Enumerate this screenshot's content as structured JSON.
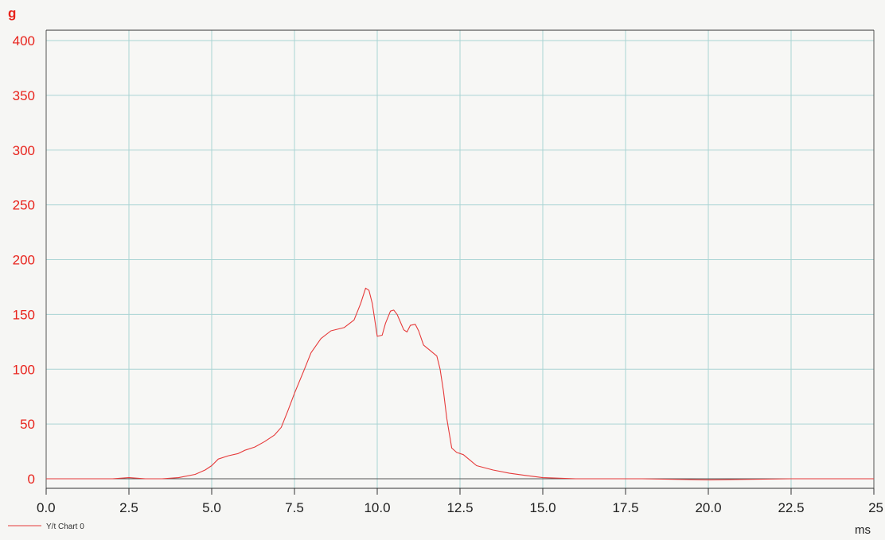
{
  "chart_data": {
    "type": "line",
    "y_unit": "g",
    "x_unit": "ms",
    "xlim": [
      0,
      25
    ],
    "ylim": [
      -8,
      410
    ],
    "x_ticks": [
      "0.0",
      "2.5",
      "5.0",
      "7.5",
      "10.0",
      "12.5",
      "15.0",
      "17.5",
      "20.0",
      "22.5",
      "25"
    ],
    "y_ticks": [
      "0",
      "50",
      "100",
      "150",
      "200",
      "250",
      "300",
      "350",
      "400"
    ],
    "grid": true,
    "legend_position": "bottom-left",
    "colors": {
      "line": "#e63a3a",
      "grid": "#a9d4d4",
      "y_tick_text": "#e8231c",
      "axis": "#333333"
    },
    "series": [
      {
        "name": "Y/t Chart 0",
        "x": [
          0,
          1.0,
          2.0,
          2.5,
          3.0,
          3.5,
          4.0,
          4.5,
          4.8,
          5.0,
          5.2,
          5.5,
          5.8,
          6.0,
          6.3,
          6.6,
          6.9,
          7.1,
          7.3,
          7.5,
          7.8,
          8.0,
          8.3,
          8.6,
          9.0,
          9.3,
          9.5,
          9.65,
          9.75,
          9.85,
          10.0,
          10.15,
          10.25,
          10.4,
          10.5,
          10.6,
          10.8,
          10.9,
          11.0,
          11.15,
          11.25,
          11.4,
          11.6,
          11.8,
          11.9,
          12.0,
          12.1,
          12.25,
          12.4,
          12.6,
          12.8,
          13.0,
          13.5,
          14.0,
          14.5,
          15.0,
          16.0,
          18.0,
          20.0,
          22.5,
          25.0
        ],
        "y": [
          0,
          0,
          0,
          1,
          0,
          0,
          1,
          4,
          8,
          12,
          18,
          21,
          23,
          26,
          29,
          34,
          40,
          47,
          62,
          78,
          100,
          115,
          128,
          135,
          138,
          145,
          160,
          174,
          172,
          160,
          130,
          131,
          142,
          153,
          154,
          150,
          136,
          134,
          140,
          141,
          135,
          122,
          117,
          112,
          100,
          80,
          55,
          28,
          24,
          22,
          17,
          12,
          8,
          5,
          3,
          1,
          0,
          0,
          -1,
          0,
          0
        ]
      }
    ]
  }
}
